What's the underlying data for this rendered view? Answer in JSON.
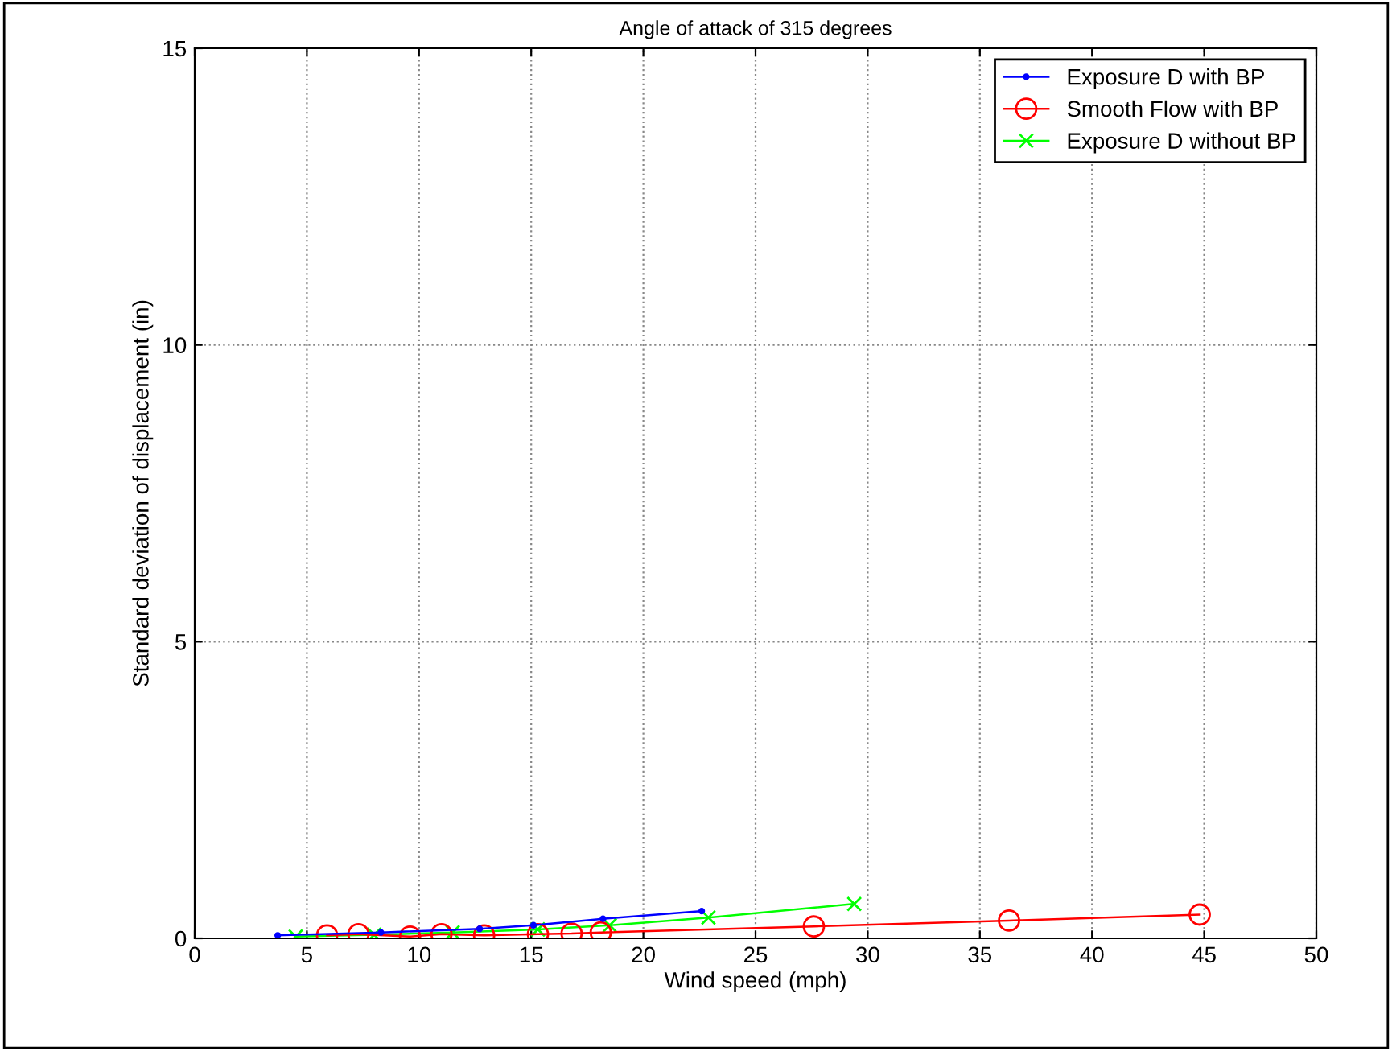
{
  "chart_data": {
    "type": "line",
    "title": "Angle of attack of 315 degrees",
    "xlabel": "Wind speed (mph)",
    "ylabel": "Standard deviation of displacement (in)",
    "xlim": [
      0,
      50
    ],
    "xticks": [
      0,
      5,
      10,
      15,
      20,
      25,
      30,
      35,
      40,
      45,
      50
    ],
    "ylim": [
      0,
      15
    ],
    "yticks": [
      0,
      5,
      10,
      15
    ],
    "grid": true,
    "legend": "top right",
    "line_style": "solid",
    "series": [
      {
        "name": "Exposure D with BP",
        "color": "#0000ff",
        "marker": "point",
        "x": [
          3.7,
          8.3,
          12.7,
          15.1,
          18.2,
          22.6
        ],
        "values": [
          0.05,
          0.1,
          0.16,
          0.22,
          0.33,
          0.46
        ]
      },
      {
        "name": "Smooth Flow with BP",
        "color": "#ff0000",
        "marker": "circle",
        "x": [
          5.9,
          7.3,
          9.6,
          11.0,
          12.9,
          15.3,
          16.8,
          18.1,
          27.6,
          36.3,
          44.8
        ],
        "values": [
          0.05,
          0.07,
          0.03,
          0.07,
          0.05,
          0.07,
          0.08,
          0.1,
          0.2,
          0.3,
          0.4
        ]
      },
      {
        "name": "Exposure D without BP",
        "color": "#00ff00",
        "marker": "cross",
        "x": [
          4.5,
          8.0,
          11.5,
          15.3,
          18.5,
          22.9,
          29.4
        ],
        "values": [
          0.03,
          0.06,
          0.1,
          0.15,
          0.22,
          0.35,
          0.58
        ]
      }
    ]
  }
}
